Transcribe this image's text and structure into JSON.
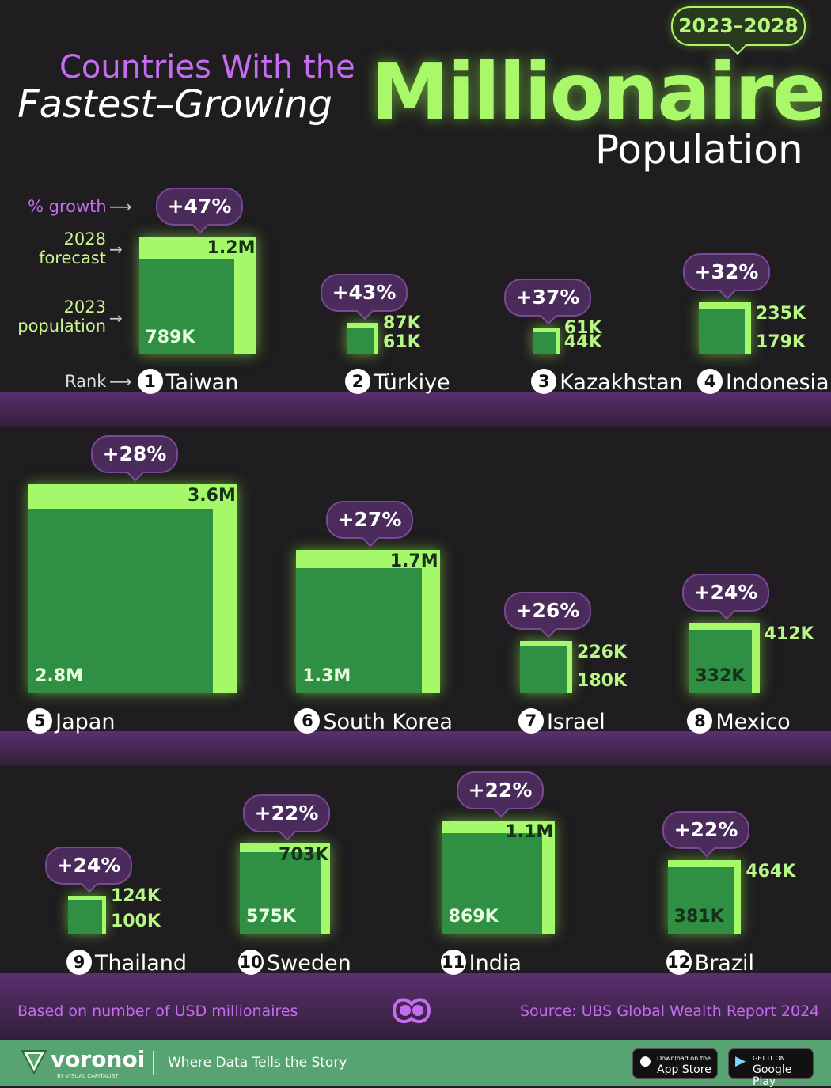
{
  "header": {
    "period": "2023–2028",
    "title_line1": "Countries With the",
    "title_line2": "Fastest–Growing",
    "title_big": "Millionaire",
    "title_end": "Population"
  },
  "legend": {
    "growth": "% growth",
    "forecast_line1": "2028",
    "forecast_line2": "forecast",
    "pop_line1": "2023",
    "pop_line2": "population",
    "rank": "Rank"
  },
  "chart_data": {
    "type": "bar",
    "title": "Countries With the Fastest–Growing Millionaire Population",
    "period": "2023–2028",
    "series_labels": [
      "2023 population",
      "2028 forecast",
      "% growth"
    ],
    "items": [
      {
        "rank": "1",
        "country": "Taiwan",
        "growth": "+47%",
        "pop_2023": 789000,
        "pop_2028": 1200000,
        "label_2023": "789K",
        "label_2028": "1.2M"
      },
      {
        "rank": "2",
        "country": "Türkiye",
        "growth": "+43%",
        "pop_2023": 61000,
        "pop_2028": 87000,
        "label_2023": "61K",
        "label_2028": "87K"
      },
      {
        "rank": "3",
        "country": "Kazakhstan",
        "growth": "+37%",
        "pop_2023": 44000,
        "pop_2028": 61000,
        "label_2023": "44K",
        "label_2028": "61K"
      },
      {
        "rank": "4",
        "country": "Indonesia",
        "growth": "+32%",
        "pop_2023": 179000,
        "pop_2028": 235000,
        "label_2023": "179K",
        "label_2028": "235K"
      },
      {
        "rank": "5",
        "country": "Japan",
        "growth": "+28%",
        "pop_2023": 2800000,
        "pop_2028": 3600000,
        "label_2023": "2.8M",
        "label_2028": "3.6M"
      },
      {
        "rank": "6",
        "country": "South Korea",
        "growth": "+27%",
        "pop_2023": 1300000,
        "pop_2028": 1700000,
        "label_2023": "1.3M",
        "label_2028": "1.7M"
      },
      {
        "rank": "7",
        "country": "Israel",
        "growth": "+26%",
        "pop_2023": 180000,
        "pop_2028": 226000,
        "label_2023": "180K",
        "label_2028": "226K"
      },
      {
        "rank": "8",
        "country": "Mexico",
        "growth": "+24%",
        "pop_2023": 332000,
        "pop_2028": 412000,
        "label_2023": "332K",
        "label_2028": "412K"
      },
      {
        "rank": "9",
        "country": "Thailand",
        "growth": "+24%",
        "pop_2023": 100000,
        "pop_2028": 124000,
        "label_2023": "100K",
        "label_2028": "124K"
      },
      {
        "rank": "10",
        "country": "Sweden",
        "growth": "+22%",
        "pop_2023": 575000,
        "pop_2028": 703000,
        "label_2023": "575K",
        "label_2028": "703K"
      },
      {
        "rank": "11",
        "country": "India",
        "growth": "+22%",
        "pop_2023": 869000,
        "pop_2028": 1100000,
        "label_2023": "869K",
        "label_2028": "1.1M"
      },
      {
        "rank": "12",
        "country": "Brazil",
        "growth": "+22%",
        "pop_2023": 381000,
        "pop_2028": 464000,
        "label_2023": "381K",
        "label_2028": "464K"
      }
    ]
  },
  "footer": {
    "note": "Based on number of USD millionaires",
    "source": "Source: UBS Global Wealth Report 2024"
  },
  "brand": {
    "name": "voronoi",
    "byline": "BY VISUAL CAPITALIST",
    "tagline": "Where Data Tells the Story",
    "appstore_small": "Download on the",
    "appstore": "App Store",
    "googleplay_small": "GET IT ON",
    "googleplay": "Google Play"
  },
  "colors": {
    "forecast": "#a6f86b",
    "population": "#2f8f42",
    "accent_purple": "#c56cf0",
    "background": "#1f1d1f"
  }
}
